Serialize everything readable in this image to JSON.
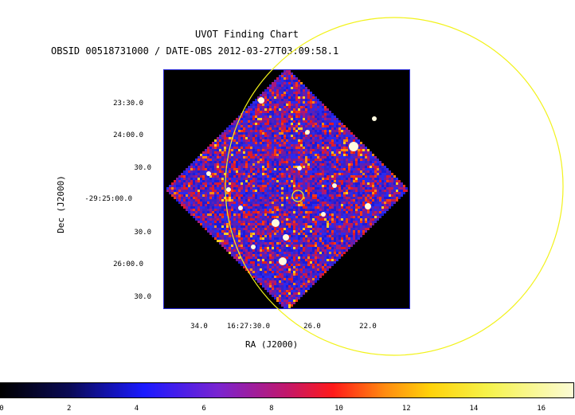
{
  "title": "UVOT Finding Chart",
  "subtitle": "OBSID 00518731000 / DATE-OBS 2012-03-27T03:09:58.1",
  "axes": {
    "ylabel": "Dec (J2000)",
    "xlabel": "RA (J2000)",
    "dec_ticks": [
      "23:30.0",
      "24:00.0",
      "30.0",
      "-29:25:00.0",
      "30.0",
      "26:00.0",
      "30.0"
    ],
    "ra_ticks": [
      "34.0",
      "16:27:30.0",
      "26.0",
      "22.0"
    ]
  },
  "colorbar": {
    "ticks": [
      "0",
      "2",
      "4",
      "6",
      "8",
      "10",
      "12",
      "14",
      "16"
    ]
  },
  "colors": {
    "circle": "#f2f21a",
    "frame": "#2a2ad8",
    "background": "#000000"
  }
}
